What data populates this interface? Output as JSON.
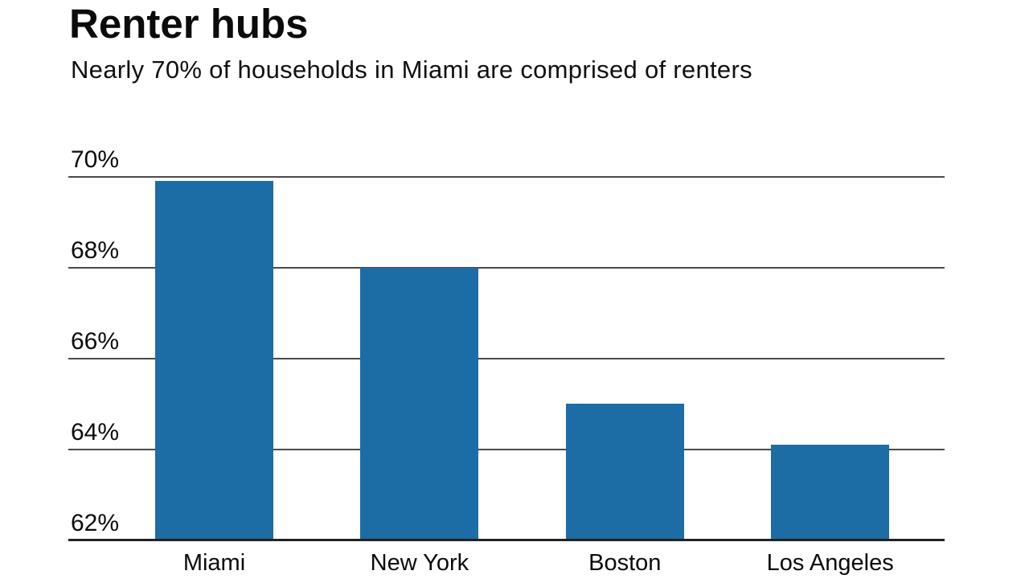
{
  "chart_data": {
    "type": "bar",
    "title": "Renter hubs",
    "subtitle": "Nearly 70% of households in Miami are comprised of renters",
    "categories": [
      "Miami",
      "New York",
      "Boston",
      "Los Angeles"
    ],
    "values": [
      69.9,
      68.0,
      65.0,
      64.1
    ],
    "unit": "%",
    "xlabel": "",
    "ylabel": "",
    "ylim": [
      62,
      70
    ],
    "yticks": [
      62,
      64,
      66,
      68,
      70
    ],
    "ytick_labels": [
      "62%",
      "64%",
      "66%",
      "68%",
      "70%"
    ],
    "grid": "horizontal-behind-bars",
    "legend_position": "none",
    "colors": {
      "bar": "#1c6ca6",
      "text": "#0b0b0b",
      "gridline": "#4a4a4a",
      "axis": "#222222",
      "background": "#ffffff"
    }
  }
}
